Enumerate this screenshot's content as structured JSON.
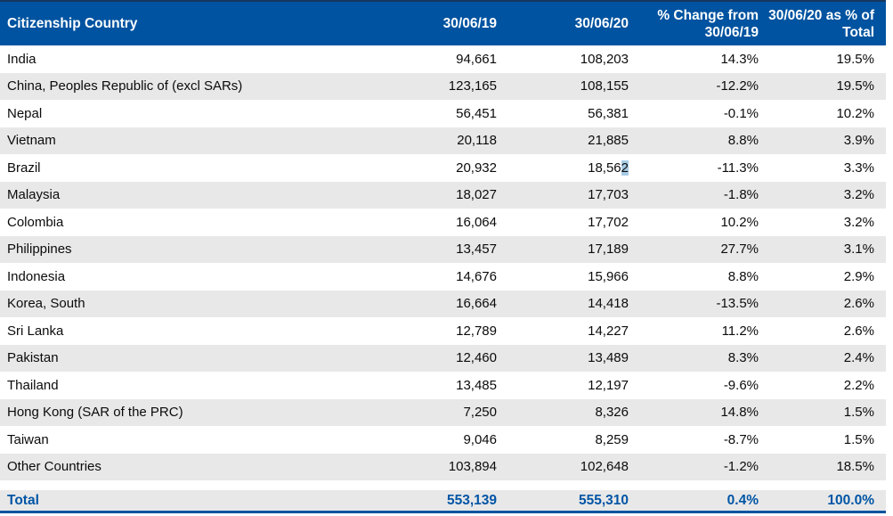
{
  "header": {
    "columns": [
      "Citizenship Country",
      "30/06/19",
      "30/06/20",
      "% Change from 30/06/19",
      "30/06/20 as % of Total"
    ]
  },
  "table": {
    "rows": [
      {
        "country": "India",
        "y2019": "94,661",
        "y2020": "108,203",
        "change": "14.3%",
        "share": "19.5%"
      },
      {
        "country": "China, Peoples Republic of (excl SARs)",
        "y2019": "123,165",
        "y2020": "108,155",
        "change": "-12.2%",
        "share": "19.5%"
      },
      {
        "country": "Nepal",
        "y2019": "56,451",
        "y2020": "56,381",
        "change": "-0.1%",
        "share": "10.2%"
      },
      {
        "country": "Vietnam",
        "y2019": "20,118",
        "y2020": "21,885",
        "change": "8.8%",
        "share": "3.9%"
      },
      {
        "country": "Brazil",
        "y2019": "20,932",
        "y2020": "18,562",
        "y2020_pre": "18,56",
        "y2020_sel": "2",
        "change": "-11.3%",
        "share": "3.3%"
      },
      {
        "country": "Malaysia",
        "y2019": "18,027",
        "y2020": "17,703",
        "change": "-1.8%",
        "share": "3.2%"
      },
      {
        "country": "Colombia",
        "y2019": "16,064",
        "y2020": "17,702",
        "change": "10.2%",
        "share": "3.2%"
      },
      {
        "country": "Philippines",
        "y2019": "13,457",
        "y2020": "17,189",
        "change": "27.7%",
        "share": "3.1%"
      },
      {
        "country": "Indonesia",
        "y2019": "14,676",
        "y2020": "15,966",
        "change": "8.8%",
        "share": "2.9%"
      },
      {
        "country": "Korea, South",
        "y2019": "16,664",
        "y2020": "14,418",
        "change": "-13.5%",
        "share": "2.6%"
      },
      {
        "country": "Sri Lanka",
        "y2019": "12,789",
        "y2020": "14,227",
        "change": "11.2%",
        "share": "2.6%"
      },
      {
        "country": "Pakistan",
        "y2019": "12,460",
        "y2020": "13,489",
        "change": "8.3%",
        "share": "2.4%"
      },
      {
        "country": "Thailand",
        "y2019": "13,485",
        "y2020": "12,197",
        "change": "-9.6%",
        "share": "2.2%"
      },
      {
        "country": "Hong Kong (SAR of the PRC)",
        "y2019": "7,250",
        "y2020": "8,326",
        "change": "14.8%",
        "share": "1.5%"
      },
      {
        "country": "Taiwan",
        "y2019": "9,046",
        "y2020": "8,259",
        "change": "-8.7%",
        "share": "1.5%"
      },
      {
        "country": "Other Countries",
        "y2019": "103,894",
        "y2020": "102,648",
        "change": "-1.2%",
        "share": "18.5%"
      }
    ],
    "total": {
      "label": "Total",
      "y2019": "553,139",
      "y2020": "555,310",
      "change": "0.4%",
      "share": "100.0%"
    }
  },
  "selection": {
    "row": "Brazil",
    "column": "30/06/20",
    "selected_text": "2"
  },
  "colors": {
    "header_bg": "#0053A0",
    "header_top_border": "#17365D",
    "row_alt_bg": "#E8E8E8",
    "total_text": "#0055A5",
    "bottom_border": "#0053A0",
    "selection_highlight": "#A8CBE4"
  },
  "chart_data": {
    "type": "table",
    "title": "Citizenship Country counts as at 30/06/19 and 30/06/20",
    "columns": [
      "Citizenship Country",
      "30/06/19",
      "30/06/20",
      "% Change from 30/06/19",
      "30/06/20 as % of Total"
    ],
    "rows": [
      [
        "India",
        94661,
        108203,
        14.3,
        19.5
      ],
      [
        "China, Peoples Republic of (excl SARs)",
        123165,
        108155,
        -12.2,
        19.5
      ],
      [
        "Nepal",
        56451,
        56381,
        -0.1,
        10.2
      ],
      [
        "Vietnam",
        20118,
        21885,
        8.8,
        3.9
      ],
      [
        "Brazil",
        20932,
        18562,
        -11.3,
        3.3
      ],
      [
        "Malaysia",
        18027,
        17703,
        -1.8,
        3.2
      ],
      [
        "Colombia",
        16064,
        17702,
        10.2,
        3.2
      ],
      [
        "Philippines",
        13457,
        17189,
        27.7,
        3.1
      ],
      [
        "Indonesia",
        14676,
        15966,
        8.8,
        2.9
      ],
      [
        "Korea, South",
        16664,
        14418,
        -13.5,
        2.6
      ],
      [
        "Sri Lanka",
        12789,
        14227,
        11.2,
        2.6
      ],
      [
        "Pakistan",
        12460,
        13489,
        8.3,
        2.4
      ],
      [
        "Thailand",
        13485,
        12197,
        -9.6,
        2.2
      ],
      [
        "Hong Kong (SAR of the PRC)",
        7250,
        8326,
        14.8,
        1.5
      ],
      [
        "Taiwan",
        9046,
        8259,
        -8.7,
        1.5
      ],
      [
        "Other Countries",
        103894,
        102648,
        -1.2,
        18.5
      ]
    ],
    "total_row": [
      "Total",
      553139,
      555310,
      0.4,
      100.0
    ]
  }
}
